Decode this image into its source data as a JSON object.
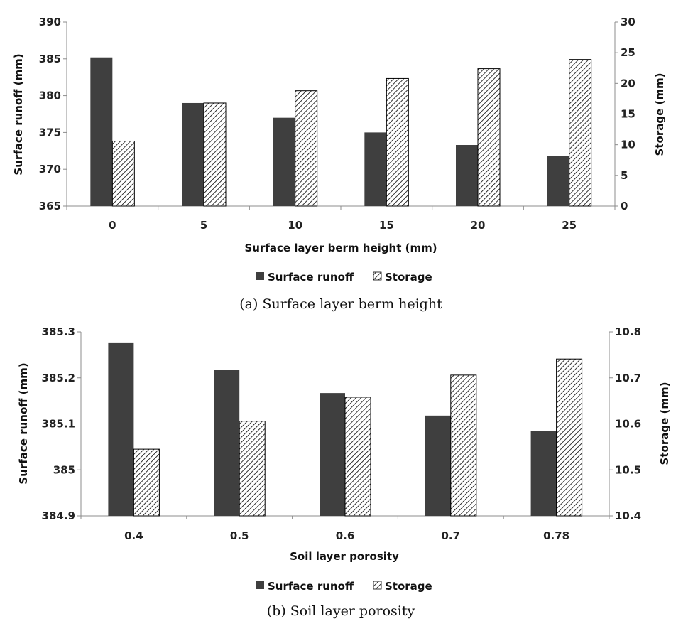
{
  "colors": {
    "runoff": "#3f3f3f",
    "storage_hatch": "#000000",
    "axis": "#8c8c8c"
  },
  "chart_data": [
    {
      "type": "bar",
      "caption": "(a) Surface layer berm height",
      "xlabel": "Surface layer berm height (mm)",
      "ylabel": "Surface runoff (mm)",
      "y2label": "Storage (mm)",
      "categories": [
        "0",
        "5",
        "10",
        "15",
        "20",
        "25"
      ],
      "ylim": [
        365,
        390
      ],
      "yticks": [
        "365",
        "370",
        "375",
        "380",
        "385",
        "390"
      ],
      "y2lim": [
        0,
        30
      ],
      "y2ticks": [
        "0",
        "5",
        "10",
        "15",
        "20",
        "25",
        "30"
      ],
      "series": [
        {
          "name": "Surface runoff",
          "axis": "left",
          "values": [
            385.2,
            379.0,
            377.0,
            375.0,
            373.3,
            371.8
          ]
        },
        {
          "name": "Storage",
          "axis": "right",
          "values": [
            10.6,
            16.8,
            18.8,
            20.8,
            22.4,
            23.9
          ]
        }
      ],
      "legend": [
        "Surface runoff",
        "Storage"
      ],
      "legend_position": "bottom",
      "grid": false
    },
    {
      "type": "bar",
      "caption": "(b) Soil layer porosity",
      "xlabel": "Soil layer porosity",
      "ylabel": "Surface runoff (mm)",
      "y2label": "Storage (mm)",
      "categories": [
        "0.4",
        "0.5",
        "0.6",
        "0.7",
        "0.78"
      ],
      "ylim": [
        384.9,
        385.3
      ],
      "yticks": [
        "384.9",
        "385",
        "385.1",
        "385.2",
        "385.3"
      ],
      "y2lim": [
        10.4,
        10.8
      ],
      "y2ticks": [
        "10.4",
        "10.5",
        "10.6",
        "10.7",
        "10.8"
      ],
      "series": [
        {
          "name": "Surface runoff",
          "axis": "left",
          "values": [
            385.277,
            385.218,
            385.167,
            385.118,
            385.084
          ]
        },
        {
          "name": "Storage",
          "axis": "right",
          "values": [
            10.545,
            10.606,
            10.658,
            10.706,
            10.741
          ]
        }
      ],
      "legend": [
        "Surface runoff",
        "Storage"
      ],
      "legend_position": "bottom",
      "grid": false
    }
  ]
}
